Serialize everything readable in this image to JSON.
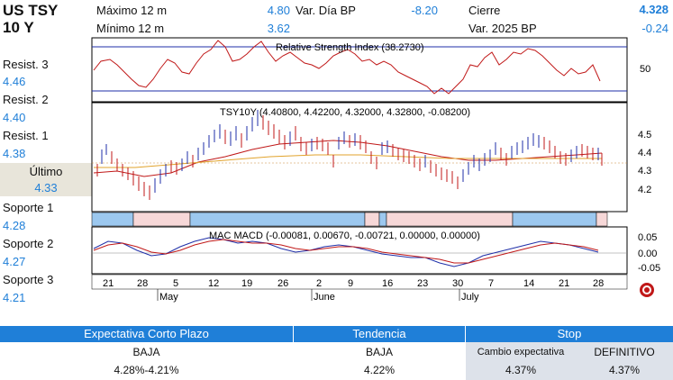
{
  "header": {
    "symbol": "US TSY",
    "tenor": "10 Y",
    "max12_label": "Máximo 12 m",
    "max12_value": "4.80",
    "min12_label": "Mínimo 12 m",
    "min12_value": "3.62",
    "var_dia_label": "Var. Día BP",
    "var_dia_value": "-8.20",
    "cierre_label": "Cierre",
    "cierre_value": "4.328",
    "var_2025_label": "Var. 2025 BP",
    "var_2025_value": "-0.24"
  },
  "levels": {
    "resist3_label": "Resist. 3",
    "resist3_value": "4.46",
    "resist2_label": "Resist. 2",
    "resist2_value": "4.40",
    "resist1_label": "Resist. 1",
    "resist1_value": "4.38",
    "ultimo_label": "Último",
    "ultimo_value": "4.33",
    "soporte1_label": "Soporte 1",
    "soporte1_value": "4.28",
    "soporte2_label": "Soporte 2",
    "soporte2_value": "4.27",
    "soporte3_label": "Soporte 3",
    "soporte3_value": "4.21"
  },
  "chart": {
    "rsi_title": "Relative Strength Index (38.2730)",
    "rsi_tick": "50",
    "price_title": "TSY10Y (4.40800, 4.42200, 4.32000, 4.32800, -0.08200)",
    "price_ticks": [
      "4.5",
      "4.4",
      "4.3",
      "4.2"
    ],
    "macd_title": "MAC MACD (-0.00081, 0.00670, -0.00721, 0.00000, 0.00000)",
    "macd_ticks": [
      "0.05",
      "0.00",
      "-0.05"
    ],
    "day_ticks": [
      "21",
      "28",
      "5",
      "12",
      "19",
      "26",
      "2",
      "9",
      "16",
      "23",
      "30",
      "7",
      "14",
      "21",
      "28"
    ],
    "month_labels": [
      "May",
      "June",
      "July"
    ],
    "colors": {
      "up": "#1f2fa8",
      "down": "#c01818",
      "band_blue": "#9cc8ef",
      "band_pink": "#f7d8d8",
      "accent": "#1f7fd8"
    }
  },
  "footer": {
    "h1": "Expectativa Corto Plazo",
    "h2": "Tendencia",
    "h3": "Stop",
    "c1_top": "BAJA",
    "c1_bottom": "4.28%-4.21%",
    "c2_top": "BAJA",
    "c2_bottom": "4.22%",
    "c3a_top": "Cambio expectativa",
    "c3a_bottom": "4.37%",
    "c3b_top": "DEFINITIVO",
    "c3b_bottom": "4.37%"
  }
}
